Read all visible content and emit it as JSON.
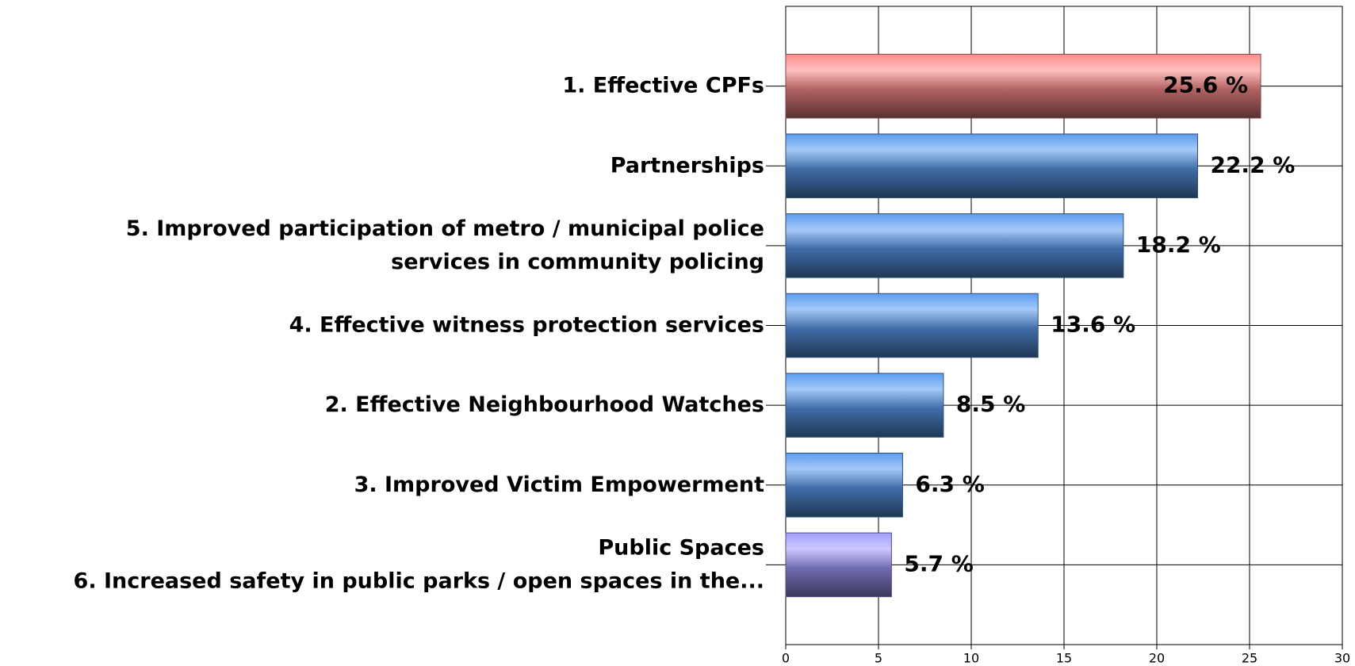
{
  "chart_data": {
    "type": "bar",
    "orientation": "horizontal",
    "categories": [
      "1. Effective CPFs",
      "Partnerships",
      "5. Improved participation of metro / municipal police\nservices in community policing",
      "4. Effective witness protection services",
      "2. Effective Neighbourhood Watches",
      "3. Improved  Victim Empowerment",
      "Public Spaces\n6. Increased safety in public parks / open spaces in the..."
    ],
    "values": [
      25.6,
      22.2,
      18.2,
      13.6,
      8.5,
      6.3,
      5.7
    ],
    "value_labels": [
      "25.6 %",
      "22.2 %",
      "18.2 %",
      "13.6 %",
      "8.5 %",
      "6.3 %",
      "5.7 %"
    ],
    "colors": [
      "#ff8c8c",
      "#5b9cf0",
      "#5b9cf0",
      "#5b9cf0",
      "#5b9cf0",
      "#5b9cf0",
      "#a29cff"
    ],
    "xlim": [
      0,
      30
    ],
    "xticks": [
      0,
      5,
      10,
      15,
      20,
      25,
      30
    ],
    "grid": true
  }
}
